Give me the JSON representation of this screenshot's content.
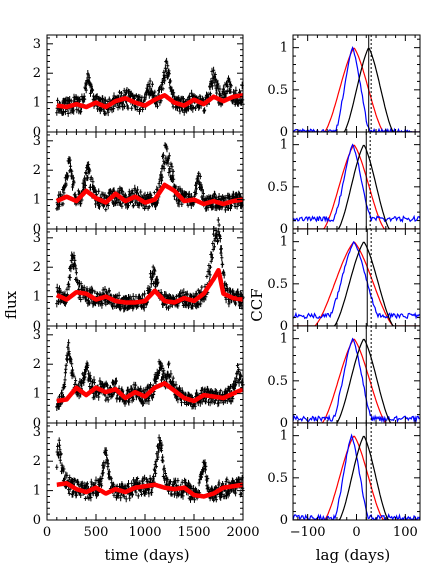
{
  "chart_data": {
    "type": "figure-grid",
    "left_panels": {
      "type": "scatter+line",
      "xlabel": "time (days)",
      "ylabel": "flux",
      "xlim": [
        0,
        2000
      ],
      "ylim": [
        0,
        3.3
      ],
      "xticks": [
        0,
        500,
        1000,
        1500,
        2000
      ],
      "yticks": [
        0,
        1,
        2,
        3
      ],
      "series_names": [
        "observed flux (black points with error bars)",
        "model/smoothed flux (red)"
      ],
      "colors": {
        "points": "#000000",
        "model": "#ff0000"
      },
      "panels": [
        {
          "seed": 11,
          "model": [
            [
              100,
              0.9
            ],
            [
              200,
              0.85
            ],
            [
              300,
              0.95
            ],
            [
              400,
              0.85
            ],
            [
              500,
              1.0
            ],
            [
              600,
              0.85
            ],
            [
              700,
              1.05
            ],
            [
              800,
              1.15
            ],
            [
              900,
              1.0
            ],
            [
              1000,
              0.9
            ],
            [
              1100,
              1.1
            ],
            [
              1200,
              1.25
            ],
            [
              1300,
              1.0
            ],
            [
              1400,
              0.9
            ],
            [
              1500,
              1.1
            ],
            [
              1600,
              0.95
            ],
            [
              1700,
              1.2
            ],
            [
              1800,
              1.05
            ],
            [
              1900,
              1.2
            ],
            [
              2000,
              1.25
            ]
          ],
          "peaks": [
            [
              420,
              2.0
            ],
            [
              1050,
              1.6
            ],
            [
              1220,
              2.3
            ],
            [
              1700,
              2.0
            ],
            [
              1850,
              1.7
            ]
          ]
        },
        {
          "seed": 23,
          "model": [
            [
              100,
              0.95
            ],
            [
              200,
              1.1
            ],
            [
              300,
              0.95
            ],
            [
              400,
              1.3
            ],
            [
              500,
              1.05
            ],
            [
              600,
              0.9
            ],
            [
              700,
              1.2
            ],
            [
              800,
              0.95
            ],
            [
              900,
              1.1
            ],
            [
              1000,
              0.9
            ],
            [
              1100,
              1.0
            ],
            [
              1200,
              1.5
            ],
            [
              1300,
              1.3
            ],
            [
              1400,
              0.95
            ],
            [
              1500,
              1.0
            ],
            [
              1600,
              0.85
            ],
            [
              1700,
              0.95
            ],
            [
              1800,
              0.85
            ],
            [
              1900,
              0.95
            ],
            [
              2000,
              1.0
            ]
          ],
          "peaks": [
            [
              230,
              2.4
            ],
            [
              420,
              2.0
            ],
            [
              1200,
              2.5
            ],
            [
              1250,
              2.1
            ],
            [
              1550,
              1.8
            ]
          ]
        },
        {
          "seed": 37,
          "model": [
            [
              100,
              1.05
            ],
            [
              200,
              0.9
            ],
            [
              300,
              1.15
            ],
            [
              400,
              1.1
            ],
            [
              500,
              0.9
            ],
            [
              600,
              1.0
            ],
            [
              700,
              0.85
            ],
            [
              800,
              0.8
            ],
            [
              900,
              0.8
            ],
            [
              1000,
              0.85
            ],
            [
              1100,
              1.2
            ],
            [
              1200,
              0.85
            ],
            [
              1300,
              0.8
            ],
            [
              1400,
              0.95
            ],
            [
              1500,
              0.85
            ],
            [
              1600,
              1.1
            ],
            [
              1700,
              1.6
            ],
            [
              1750,
              1.9
            ],
            [
              1800,
              1.1
            ],
            [
              1900,
              0.95
            ],
            [
              2000,
              0.9
            ]
          ],
          "peaks": [
            [
              260,
              2.5
            ],
            [
              1080,
              1.9
            ],
            [
              1700,
              3.0
            ],
            [
              1760,
              3.2
            ]
          ]
        },
        {
          "seed": 53,
          "model": [
            [
              100,
              0.75
            ],
            [
              200,
              0.8
            ],
            [
              300,
              1.2
            ],
            [
              400,
              0.95
            ],
            [
              500,
              1.2
            ],
            [
              600,
              1.05
            ],
            [
              700,
              1.15
            ],
            [
              800,
              0.85
            ],
            [
              900,
              1.05
            ],
            [
              1000,
              0.9
            ],
            [
              1100,
              1.2
            ],
            [
              1200,
              1.35
            ],
            [
              1300,
              1.1
            ],
            [
              1400,
              0.85
            ],
            [
              1500,
              0.75
            ],
            [
              1600,
              0.95
            ],
            [
              1700,
              0.9
            ],
            [
              1800,
              0.85
            ],
            [
              1900,
              1.0
            ],
            [
              2000,
              1.15
            ]
          ],
          "peaks": [
            [
              220,
              2.8
            ],
            [
              400,
              2.0
            ],
            [
              1150,
              1.9
            ],
            [
              1250,
              1.8
            ],
            [
              1950,
              1.8
            ]
          ]
        },
        {
          "seed": 71,
          "model": [
            [
              100,
              1.2
            ],
            [
              200,
              1.25
            ],
            [
              300,
              1.05
            ],
            [
              400,
              0.95
            ],
            [
              500,
              1.1
            ],
            [
              600,
              0.9
            ],
            [
              700,
              1.05
            ],
            [
              800,
              0.95
            ],
            [
              900,
              1.1
            ],
            [
              1000,
              1.15
            ],
            [
              1100,
              1.2
            ],
            [
              1200,
              1.1
            ],
            [
              1300,
              1.05
            ],
            [
              1400,
              1.1
            ],
            [
              1500,
              0.85
            ],
            [
              1600,
              0.8
            ],
            [
              1700,
              0.9
            ],
            [
              1800,
              1.1
            ],
            [
              1900,
              1.15
            ],
            [
              2000,
              1.2
            ]
          ],
          "peaks": [
            [
              120,
              2.6
            ],
            [
              600,
              2.4
            ],
            [
              1150,
              2.9
            ],
            [
              1600,
              2.0
            ]
          ]
        }
      ]
    },
    "right_panels": {
      "type": "line",
      "xlabel": "lag (days)",
      "ylabel": "CCF",
      "xlim": [
        -130,
        130
      ],
      "ylim": [
        0,
        1.15
      ],
      "xticks": [
        -100,
        0,
        100
      ],
      "yticks": [
        0,
        0.5,
        1
      ],
      "colors": {
        "red": "#ff0000",
        "blue": "#0000ff",
        "black": "#000000"
      },
      "panels": [
        {
          "red_peak": -5,
          "blue_peak": -8,
          "black_peak": 25,
          "red_width": 60,
          "blue_width": 35,
          "black_width": 50,
          "blue_floor": 0,
          "vlines": [
            25,
            30
          ]
        },
        {
          "red_peak": -5,
          "blue_peak": -8,
          "black_peak": 15,
          "red_width": 62,
          "blue_width": 38,
          "black_width": 52,
          "blue_floor": 0.12,
          "vlines": [
            20,
            28
          ]
        },
        {
          "red_peak": -5,
          "blue_peak": -5,
          "black_peak": 15,
          "red_width": 80,
          "blue_width": 50,
          "black_width": 60,
          "blue_floor": 0.12,
          "vlines": [
            22,
            30
          ]
        },
        {
          "red_peak": -5,
          "blue_peak": -8,
          "black_peak": 15,
          "red_width": 65,
          "blue_width": 40,
          "black_width": 55,
          "blue_floor": 0.05,
          "vlines": [
            20,
            30
          ]
        },
        {
          "red_peak": -5,
          "blue_peak": -10,
          "black_peak": 15,
          "red_width": 60,
          "blue_width": 35,
          "black_width": 50,
          "blue_floor": 0.03,
          "vlines": [
            20,
            30
          ]
        }
      ]
    }
  }
}
